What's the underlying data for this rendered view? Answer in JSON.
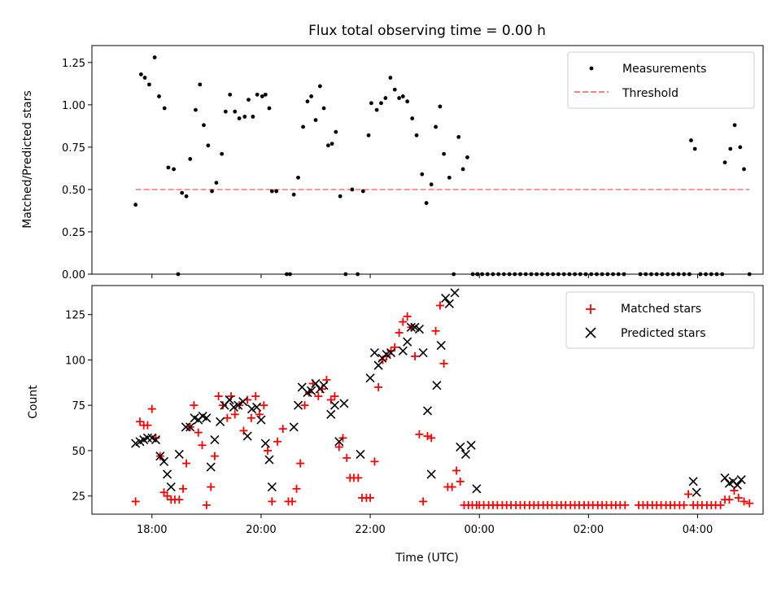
{
  "chart_data": [
    {
      "type": "scatter",
      "title": "Flux total observing time = 0.00 h",
      "xlabel": "",
      "ylabel": "Matched/Predicted stars",
      "xlim_hours": [
        16.9,
        29.2
      ],
      "ylim": [
        0,
        1.35
      ],
      "y_ticks": [
        0.0,
        0.25,
        0.5,
        0.75,
        1.0,
        1.25
      ],
      "y_tick_labels": [
        "0.00",
        "0.25",
        "0.50",
        "0.75",
        "1.00",
        "1.25"
      ],
      "legend_position": "top-right",
      "series": [
        {
          "name": "Measurements",
          "style": "dot",
          "color": "#000000",
          "x_hours": [
            17.7,
            17.8,
            17.87,
            17.95,
            18.05,
            18.13,
            18.23,
            18.3,
            18.4,
            18.48,
            18.55,
            18.63,
            18.7,
            18.8,
            18.88,
            18.95,
            19.03,
            19.1,
            19.18,
            19.28,
            19.35,
            19.43,
            19.52,
            19.6,
            19.7,
            19.77,
            19.85,
            19.93,
            20.02,
            20.08,
            20.15,
            20.2,
            20.28,
            20.47,
            20.53,
            20.6,
            20.68,
            20.77,
            20.85,
            20.92,
            21.0,
            21.08,
            21.15,
            21.23,
            21.3,
            21.37,
            21.45,
            21.55,
            21.67,
            21.77,
            21.87,
            21.97,
            22.02,
            22.12,
            22.2,
            22.28,
            22.37,
            22.45,
            22.53,
            22.6,
            22.68,
            22.77,
            22.85,
            22.95,
            23.03,
            23.12,
            23.2,
            23.28,
            23.35,
            23.45,
            23.53,
            23.62,
            23.7,
            23.78,
            23.88,
            23.97,
            23.96
          ],
          "values": [
            0.41,
            1.18,
            1.16,
            1.12,
            1.28,
            1.05,
            0.98,
            0.63,
            0.62,
            0.0,
            0.48,
            0.46,
            0.68,
            0.97,
            1.12,
            0.88,
            0.76,
            0.49,
            0.54,
            0.71,
            0.96,
            1.06,
            0.96,
            0.92,
            0.93,
            1.03,
            0.93,
            1.06,
            1.05,
            1.06,
            0.98,
            0.49,
            0.49,
            0.0,
            0.0,
            0.47,
            0.57,
            0.87,
            1.02,
            1.05,
            0.91,
            1.11,
            0.98,
            0.76,
            0.77,
            0.84,
            0.46,
            0.0,
            0.5,
            0.0,
            0.49,
            0.82,
            1.01,
            0.97,
            1.01,
            1.04,
            1.16,
            1.09,
            1.04,
            1.05,
            1.02,
            0.92,
            0.82,
            0.59,
            0.42,
            0.53,
            0.87,
            0.99,
            0.71,
            0.57,
            0.0,
            0.81,
            0.62,
            0.69,
            0.0,
            0.0,
            0.0
          ],
          "extra_points": [
            {
              "x_hours": [
                27.88,
                27.95,
                28.5,
                28.6,
                28.68,
                28.78,
                28.85
              ],
              "values": [
                0.79,
                0.74,
                0.66,
                0.74,
                0.88,
                0.75,
                0.62
              ]
            },
            {
              "x_hours": [
                24.05,
                24.15,
                24.25,
                24.35,
                24.45,
                24.55,
                24.65,
                24.75,
                24.85,
                24.95,
                25.05,
                25.15,
                25.25,
                25.35,
                25.45,
                25.55,
                25.65,
                25.75,
                25.85,
                25.95,
                26.05,
                26.15,
                26.25,
                26.35,
                26.45,
                26.55,
                26.65,
                26.95,
                27.05,
                27.15,
                27.25,
                27.35,
                27.45,
                27.55,
                27.65,
                27.75,
                27.85,
                28.05,
                28.15,
                28.25,
                28.35,
                28.45,
                28.95
              ],
              "values": [
                0,
                0,
                0,
                0,
                0,
                0,
                0,
                0,
                0,
                0,
                0,
                0,
                0,
                0,
                0,
                0,
                0,
                0,
                0,
                0,
                0,
                0,
                0,
                0,
                0,
                0,
                0,
                0,
                0,
                0,
                0,
                0,
                0,
                0,
                0,
                0,
                0,
                0,
                0,
                0,
                0,
                0,
                0
              ]
            }
          ]
        },
        {
          "name": "Threshold",
          "style": "dashed-line",
          "color": "#ff7f7f",
          "x_hours": [
            17.7,
            28.95
          ],
          "values": [
            0.5,
            0.5
          ]
        }
      ]
    },
    {
      "type": "scatter",
      "title": "",
      "xlabel": "Time (UTC)",
      "ylabel": "Count",
      "xlim_hours": [
        16.9,
        29.2
      ],
      "ylim": [
        15,
        141
      ],
      "y_ticks": [
        25,
        50,
        75,
        100,
        125
      ],
      "y_tick_labels": [
        "25",
        "50",
        "75",
        "100",
        "125"
      ],
      "x_ticks_hours": [
        18,
        20,
        22,
        24,
        26,
        28
      ],
      "x_tick_labels": [
        "18:00",
        "20:00",
        "22:00",
        "00:00",
        "02:00",
        "04:00"
      ],
      "legend_position": "top-right",
      "series": [
        {
          "name": "Matched stars",
          "style": "plus",
          "color": "#ff0000",
          "x_hours": [
            17.7,
            17.78,
            17.85,
            17.92,
            18.0,
            18.07,
            18.15,
            18.22,
            18.28,
            18.35,
            18.42,
            18.5,
            18.57,
            18.63,
            18.7,
            18.77,
            18.85,
            18.92,
            19.0,
            19.08,
            19.15,
            19.22,
            19.3,
            19.38,
            19.45,
            19.52,
            19.6,
            19.68,
            19.75,
            19.82,
            19.9,
            19.97,
            20.05,
            20.12,
            20.2,
            20.3,
            20.4,
            20.5,
            20.57,
            20.65,
            20.72,
            20.8,
            20.88,
            20.95,
            21.05,
            21.12,
            21.2,
            21.28,
            21.35,
            21.43,
            21.5,
            21.57,
            21.63,
            21.7,
            21.78,
            21.85,
            21.93,
            22.0,
            22.08,
            22.15,
            22.23,
            22.3,
            22.38,
            22.45,
            22.53,
            22.6,
            22.68,
            22.75,
            22.82,
            22.9,
            22.97,
            23.05,
            23.12,
            23.2,
            23.28,
            23.35,
            23.42,
            23.5,
            23.58,
            23.65,
            23.72,
            23.8,
            23.87,
            23.95,
            28.85,
            28.95
          ],
          "values": [
            22,
            66,
            64,
            64,
            73,
            57,
            47,
            27,
            25,
            23,
            23,
            23,
            29,
            43,
            63,
            75,
            60,
            53,
            20,
            30,
            47,
            80,
            75,
            68,
            80,
            70,
            75,
            61,
            78,
            68,
            80,
            70,
            75,
            50,
            22,
            55,
            62,
            22,
            22,
            29,
            43,
            75,
            82,
            87,
            80,
            84,
            89,
            78,
            80,
            52,
            57,
            46,
            35,
            35,
            35,
            24,
            24,
            24,
            44,
            85,
            100,
            102,
            105,
            107,
            115,
            121,
            124,
            118,
            102,
            59,
            22,
            58,
            57,
            116,
            130,
            98,
            30,
            30,
            39,
            33,
            20,
            20,
            20,
            20,
            22,
            21
          ],
          "extra_points": {
            "x_hours": [
              24.0,
              24.08,
              24.17,
              24.25,
              24.33,
              24.42,
              24.5,
              24.58,
              24.67,
              24.75,
              24.83,
              24.92,
              25.0,
              25.08,
              25.17,
              25.25,
              25.33,
              25.42,
              25.5,
              25.58,
              25.67,
              25.75,
              25.83,
              25.92,
              26.0,
              26.08,
              26.17,
              26.25,
              26.33,
              26.42,
              26.5,
              26.58,
              26.67,
              26.92,
              27.0,
              27.08,
              27.17,
              27.25,
              27.33,
              27.42,
              27.5,
              27.58,
              27.67,
              27.75,
              27.83,
              27.92,
              28.0,
              28.08,
              28.17,
              28.25,
              28.33,
              28.42,
              28.5,
              28.58,
              28.67,
              28.75
            ],
            "values": [
              20,
              20,
              20,
              20,
              20,
              20,
              20,
              20,
              20,
              20,
              20,
              20,
              20,
              20,
              20,
              20,
              20,
              20,
              20,
              20,
              20,
              20,
              20,
              20,
              20,
              20,
              20,
              20,
              20,
              20,
              20,
              20,
              20,
              20,
              20,
              20,
              20,
              20,
              20,
              20,
              20,
              20,
              20,
              20,
              26,
              20,
              20,
              20,
              20,
              20,
              20,
              20,
              23,
              23,
              28,
              24
            ]
          }
        },
        {
          "name": "Predicted stars",
          "style": "x",
          "color": "#000000",
          "x_hours": [
            17.7,
            17.78,
            17.85,
            17.92,
            18.0,
            18.07,
            18.15,
            18.22,
            18.28,
            18.35,
            18.5,
            18.62,
            18.7,
            18.78,
            18.85,
            18.93,
            19.0,
            19.08,
            19.15,
            19.25,
            19.33,
            19.42,
            19.5,
            19.58,
            19.67,
            19.75,
            19.83,
            19.92,
            20.0,
            20.08,
            20.15,
            20.2,
            20.6,
            20.68,
            20.75,
            20.85,
            20.92,
            21.0,
            21.08,
            21.15,
            21.28,
            21.35,
            21.43,
            21.52,
            21.82,
            22.0,
            22.08,
            22.15,
            22.22,
            22.3,
            22.38,
            22.6,
            22.68,
            22.75,
            22.82,
            22.9,
            22.97,
            23.05,
            23.12,
            23.22,
            23.3,
            23.38,
            23.45,
            23.55,
            23.65,
            23.75,
            23.85,
            23.95,
            27.92,
            27.98,
            28.5,
            28.58,
            28.65,
            28.73,
            28.8
          ],
          "values": [
            54,
            55,
            56,
            57,
            57,
            56,
            47,
            44,
            37,
            30,
            48,
            63,
            63,
            68,
            67,
            69,
            68,
            41,
            56,
            66,
            75,
            78,
            74,
            75,
            77,
            58,
            73,
            74,
            67,
            54,
            45,
            30,
            63,
            75,
            85,
            82,
            83,
            87,
            84,
            86,
            70,
            75,
            55,
            76,
            48,
            90,
            104,
            97,
            101,
            103,
            104,
            105,
            110,
            118,
            118,
            117,
            104,
            72,
            37,
            86,
            108,
            134,
            131,
            137,
            52,
            48,
            53,
            29,
            33,
            27,
            35,
            32,
            33,
            31,
            34
          ]
        }
      ]
    }
  ]
}
